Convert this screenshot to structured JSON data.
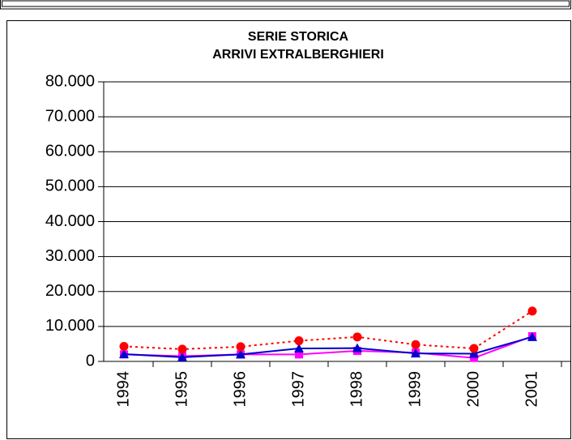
{
  "chart_data": {
    "type": "line",
    "title": [
      "SERIE STORICA",
      "ARRIVI EXTRALBERGHIERI"
    ],
    "categories": [
      "1994",
      "1995",
      "1996",
      "1997",
      "1998",
      "1999",
      "2000",
      "2001"
    ],
    "series": [
      {
        "color": "#ff00ff",
        "marker": "square",
        "line_style": "solid",
        "values": [
          2000,
          1500,
          2000,
          2000,
          3000,
          2500,
          1000,
          7200
        ]
      },
      {
        "color": "#0000cc",
        "marker": "triangle",
        "line_style": "solid",
        "values": [
          2100,
          1200,
          2000,
          3700,
          3800,
          2300,
          2200,
          7000
        ]
      },
      {
        "color": "#ff0000",
        "marker": "circle",
        "line_style": "dotted",
        "values": [
          4300,
          3500,
          4200,
          5900,
          7000,
          4800,
          3700,
          14400
        ]
      }
    ],
    "ylim": [
      0,
      80000
    ],
    "yticks": [
      0,
      {
        "value": 10000,
        "label": "10.000"
      },
      {
        "value": 20000,
        "label": "20.000"
      },
      {
        "value": 30000,
        "label": "30.000"
      },
      {
        "value": 40000,
        "label": "40.000"
      },
      {
        "value": 50000,
        "label": "50.000"
      },
      {
        "value": 60000,
        "label": "60.000"
      },
      {
        "value": 70000,
        "label": "70.000"
      },
      {
        "value": 80000,
        "label": "80.000"
      }
    ],
    "grid": true
  }
}
